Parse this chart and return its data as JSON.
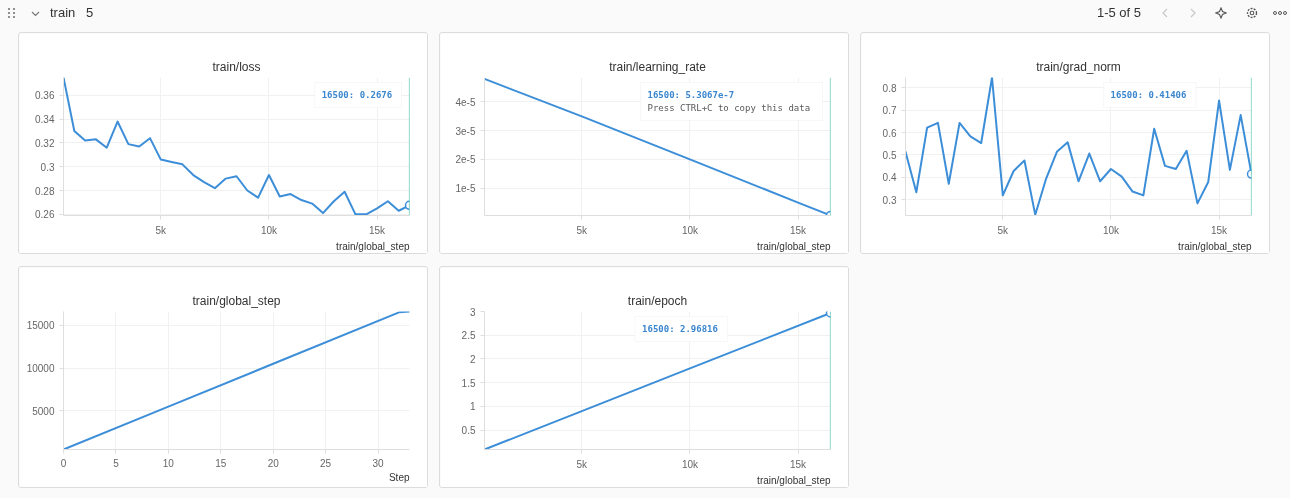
{
  "chart_data": [
    {
      "type": "other",
      "title": "train",
      "annotations": [
        "5",
        "1-5 of 5"
      ]
    },
    {
      "type": "line",
      "title": "train/loss",
      "xlabel": "train/global_step",
      "x": [
        500,
        1000,
        1500,
        2000,
        2500,
        3000,
        3500,
        4000,
        4500,
        5000,
        5500,
        6000,
        6500,
        7000,
        7500,
        8000,
        8500,
        9000,
        9500,
        10000,
        10500,
        11000,
        11500,
        12000,
        12500,
        13000,
        13500,
        14000,
        14500,
        15000,
        15500,
        16000,
        16500
      ],
      "series": [
        {
          "color": "#3d8ed8",
          "values": [
            0.375,
            0.33,
            0.322,
            0.323,
            0.316,
            0.338,
            0.319,
            0.317,
            0.324,
            0.306,
            0.304,
            0.302,
            0.293,
            0.287,
            0.282,
            0.29,
            0.292,
            0.28,
            0.274,
            0.293,
            0.275,
            0.277,
            0.272,
            0.269,
            0.261,
            0.271,
            0.279,
            0.26,
            0.26,
            0.265,
            0.271,
            0.263,
            0.2676
          ]
        }
      ],
      "xlim": [
        500,
        16500
      ],
      "ylim": [
        0.259,
        0.375
      ],
      "xticks": [
        {
          "value": 5000,
          "label": "5k"
        },
        {
          "value": 10000,
          "label": "10k"
        },
        {
          "value": 15000,
          "label": "15k"
        }
      ],
      "yticks": [
        0.26,
        0.28,
        0.3,
        0.32,
        0.34,
        0.36
      ],
      "grid": true,
      "ref_lines": [
        {
          "axis": "x",
          "value": 16500,
          "color": "#45c0b0"
        }
      ],
      "annotations": [
        "16500: 0.2676"
      ]
    },
    {
      "type": "line",
      "title": "train/learning_rate",
      "xlabel": "train/global_step",
      "x": [
        500,
        5000,
        10000,
        15000,
        16500
      ],
      "series": [
        {
          "color": "#3d8ed8",
          "values": [
            4.8e-05,
            3.5e-05,
            2e-05,
            5e-06,
            5.3067e-07
          ]
        }
      ],
      "xlim": [
        500,
        16500
      ],
      "ylim": [
        5e-07,
        4.85e-05
      ],
      "xticks": [
        {
          "value": 5000,
          "label": "5k"
        },
        {
          "value": 10000,
          "label": "10k"
        },
        {
          "value": 15000,
          "label": "15k"
        }
      ],
      "yticks": [
        {
          "value": 1e-05,
          "label": "1e-5"
        },
        {
          "value": 2e-05,
          "label": "2e-5"
        },
        {
          "value": 3e-05,
          "label": "3e-5"
        },
        {
          "value": 4e-05,
          "label": "4e-5"
        }
      ],
      "grid": true,
      "ref_lines": [
        {
          "axis": "x",
          "value": 16500,
          "color": "#45c0b0"
        }
      ],
      "annotations": [
        "16500: 5.3067e-7",
        "Press CTRL+C to copy this data"
      ]
    },
    {
      "type": "line",
      "title": "train/grad_norm",
      "xlabel": "train/global_step",
      "x": [
        500,
        1000,
        1500,
        2000,
        2500,
        3000,
        3500,
        4000,
        4500,
        5000,
        5500,
        6000,
        6500,
        7000,
        7500,
        8000,
        8500,
        9000,
        9500,
        10000,
        10500,
        11000,
        11500,
        12000,
        12500,
        13000,
        13500,
        14000,
        14500,
        15000,
        15500,
        16000,
        16500
      ],
      "series": [
        {
          "color": "#3d8ed8",
          "values": [
            0.514,
            0.333,
            0.622,
            0.643,
            0.371,
            0.643,
            0.583,
            0.553,
            0.846,
            0.319,
            0.428,
            0.475,
            0.232,
            0.393,
            0.514,
            0.556,
            0.382,
            0.506,
            0.382,
            0.437,
            0.403,
            0.336,
            0.319,
            0.617,
            0.451,
            0.437,
            0.518,
            0.283,
            0.379,
            0.743,
            0.433,
            0.678,
            0.41406
          ]
        }
      ],
      "xlim": [
        500,
        16500
      ],
      "ylim": [
        0.229,
        0.846
      ],
      "xticks": [
        {
          "value": 5000,
          "label": "5k"
        },
        {
          "value": 10000,
          "label": "10k"
        },
        {
          "value": 15000,
          "label": "15k"
        }
      ],
      "yticks": [
        0.3,
        0.4,
        0.5,
        0.6,
        0.7,
        0.8
      ],
      "grid": true,
      "ref_lines": [
        {
          "axis": "x",
          "value": 16500,
          "color": "#45c0b0"
        }
      ],
      "annotations": [
        "16500: 0.41406"
      ]
    },
    {
      "type": "line",
      "title": "train/global_step",
      "xlabel": "Step",
      "x": [
        0,
        10,
        20,
        32,
        33
      ],
      "series": [
        {
          "color": "#3d8ed8",
          "values": [
            500,
            5500,
            10500,
            16500,
            16600
          ]
        }
      ],
      "xlim": [
        0,
        33
      ],
      "ylim": [
        500,
        16600
      ],
      "xticks": [
        0,
        5,
        10,
        15,
        20,
        25,
        30
      ],
      "yticks": [
        5000,
        10000,
        15000
      ],
      "grid": true
    },
    {
      "type": "line",
      "title": "train/epoch",
      "xlabel": "train/global_step",
      "x": [
        500,
        5000,
        10000,
        16500
      ],
      "series": [
        {
          "color": "#3d8ed8",
          "values": [
            0.09,
            0.9,
            1.8,
            2.96816
          ]
        }
      ],
      "xlim": [
        500,
        16500
      ],
      "ylim": [
        0.09,
        3
      ],
      "xticks": [
        {
          "value": 5000,
          "label": "5k"
        },
        {
          "value": 10000,
          "label": "10k"
        },
        {
          "value": 15000,
          "label": "15k"
        }
      ],
      "yticks": [
        0.5,
        1,
        1.5,
        2,
        2.5,
        3
      ],
      "grid": true,
      "ref_lines": [
        {
          "axis": "x",
          "value": 16500,
          "color": "#45c0b0"
        }
      ],
      "annotations": [
        "16500: 2.96816"
      ]
    }
  ]
}
